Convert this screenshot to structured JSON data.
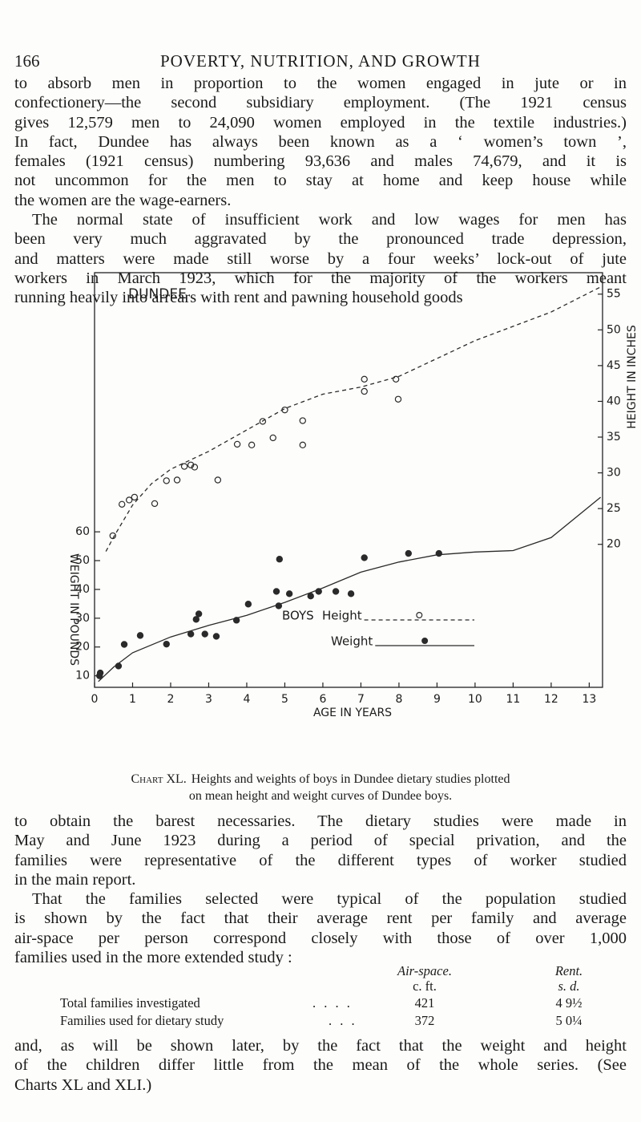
{
  "header": {
    "page_number": "166",
    "running_title": "POVERTY, NUTRITION, AND GROWTH"
  },
  "paragraphs_before": [
    [
      "to absorb men in proportion to the women engaged in jute or in",
      "confectionery—the second subsidiary employment. (The 1921 census",
      "gives 12,579 men to 24,090 women employed in the textile industries.)",
      "In fact, Dundee has always been known as a ‘ women’s town ’,",
      "females (1921 census) numbering 93,636 and males 74,679, and it is",
      "not uncommon for the men to stay at home and keep house while",
      "the women are the wage-earners."
    ],
    [
      "The normal state of insufficient work and low wages for men has",
      "been very much aggravated by the pronounced trade depression,",
      "and matters were made still worse by a four weeks’ lock-out of jute",
      "workers in March 1923, which for the majority of the workers meant",
      "running heavily into arrears with rent and pawning household goods"
    ]
  ],
  "chart_data": {
    "type": "scatter",
    "title": "DUNDEE",
    "xlabel": "AGE IN YEARS",
    "ylabel": "WEIGHT IN POUNDS",
    "y2label": "HEIGHT IN INCHES",
    "legend_title": "BOYS",
    "xlim": [
      0,
      13.35
    ],
    "xticks": [
      0,
      1,
      2,
      3,
      4,
      5,
      6,
      7,
      8,
      9,
      10,
      11,
      12,
      13
    ],
    "ylim": [
      6,
      150
    ],
    "yticks": [
      10,
      20,
      30,
      40,
      50,
      60
    ],
    "y2lim": [
      0,
      58
    ],
    "y2ticks": [
      20,
      25,
      30,
      35,
      40,
      45,
      50,
      55
    ],
    "series": [
      {
        "name": "Height",
        "axis": "y2",
        "marker": "open",
        "line": "dashed",
        "color": "#2a2a2a",
        "x": [
          0.48,
          0.72,
          0.91,
          1.05,
          1.58,
          1.89,
          2.17,
          2.36,
          2.53,
          2.63,
          3.24,
          3.75,
          4.13,
          4.42,
          4.69,
          5.0,
          5.47,
          5.47,
          7.09,
          7.09,
          7.92,
          7.98
        ],
        "values": [
          21.2,
          25.6,
          26.2,
          26.6,
          25.7,
          28.9,
          29.0,
          30.9,
          31.1,
          30.8,
          29.0,
          34.0,
          33.9,
          37.2,
          34.9,
          38.8,
          33.9,
          37.3,
          43.1,
          41.4,
          43.1,
          40.3
        ],
        "curve_x": [
          0.3,
          0.5,
          1,
          1.5,
          2,
          3,
          4,
          5,
          6,
          7,
          8,
          9,
          10,
          11,
          12,
          13.3
        ],
        "curve_values": [
          19,
          21,
          25.5,
          28.5,
          30.5,
          33,
          36,
          39,
          41,
          42,
          43.5,
          46,
          48.5,
          50.5,
          52.5,
          56
        ]
      },
      {
        "name": "Weight",
        "axis": "y",
        "marker": "filled",
        "line": "solid",
        "color": "#2a2a2a",
        "x": [
          0.13,
          0.15,
          0.63,
          0.78,
          1.2,
          1.89,
          2.53,
          2.67,
          2.74,
          2.9,
          3.2,
          3.73,
          4.04,
          4.78,
          4.84,
          4.86,
          5.12,
          5.68,
          5.89,
          6.34,
          6.74,
          7.09,
          8.25,
          9.05
        ],
        "values": [
          10,
          11,
          13.4,
          20.9,
          24,
          21,
          24.5,
          29.6,
          31.5,
          24.5,
          23.7,
          29.3,
          34.9,
          39.3,
          34.3,
          50.5,
          38.5,
          37.7,
          39.3,
          39.3,
          38.5,
          51,
          52.5,
          52.5
        ],
        "curve_x": [
          0.1,
          0.5,
          1,
          2,
          3,
          4,
          5,
          6,
          7,
          8,
          9,
          10,
          11,
          12,
          13.3
        ],
        "curve_values": [
          8,
          13,
          18,
          23.5,
          27.5,
          31,
          35.5,
          40.5,
          46,
          49.5,
          52,
          53,
          53.5,
          58,
          72
        ]
      }
    ]
  },
  "caption": {
    "label": "Chart XL.",
    "lines": [
      "Heights and weights of boys in Dundee dietary studies plotted",
      "on mean height and weight curves of Dundee boys."
    ]
  },
  "paragraphs_after": [
    [
      "to obtain the barest necessaries. The dietary studies were made in",
      "May and June 1923 during a period of special privation, and the",
      "families were representative of the different types of worker studied",
      "in the main report."
    ],
    [
      "That the families selected were typical of the population studied",
      "is shown by the fact that their average rent per family and average",
      "air-space per person correspond closely with those of over 1,000",
      "families used in the more extended study :"
    ]
  ],
  "table": {
    "columns": [
      "Air-space.",
      "Rent."
    ],
    "units": [
      "c. ft.",
      "s. d."
    ],
    "rows": [
      {
        "label": "Total families investigated",
        "leader": ". . . .",
        "air_space": 421,
        "rent": "4 9½"
      },
      {
        "label": "Families used for dietary study",
        "leader": ". . .",
        "air_space": 372,
        "rent": "5 0¼"
      }
    ]
  },
  "closing_paragraph": [
    "and, as will be shown later, by the fact that the weight and height",
    "of the children differ little from the mean of the whole series. (See",
    "Charts XL and XLI.)"
  ]
}
